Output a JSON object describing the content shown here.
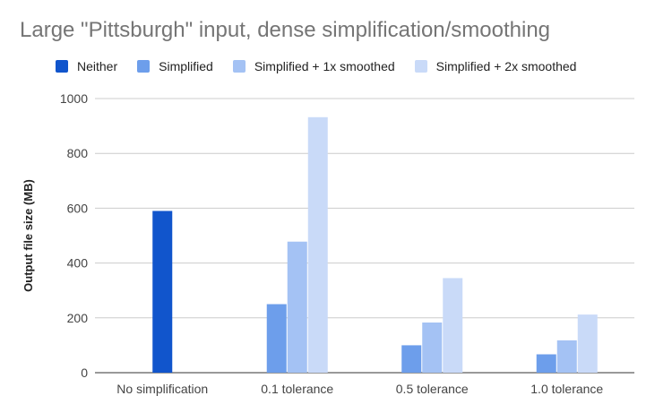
{
  "chart_data": {
    "type": "bar",
    "title": "Large \"Pittsburgh\" input, dense simplification/smoothing",
    "xlabel": "",
    "ylabel": "Output file size (MB)",
    "ylim": [
      0,
      1000
    ],
    "yticks": [
      "0",
      "200",
      "400",
      "600",
      "800",
      "1000"
    ],
    "grid": true,
    "legend_position": "top",
    "categories": [
      "No simplification",
      "0.1 tolerance",
      "0.5 tolerance",
      "1.0 tolerance"
    ],
    "series": [
      {
        "name": "Neither",
        "color": "#1155cc",
        "values": [
          590,
          null,
          null,
          null
        ]
      },
      {
        "name": "Simplified",
        "color": "#6d9eeb",
        "values": [
          null,
          250,
          100,
          67
        ]
      },
      {
        "name": "Simplified + 1x smoothed",
        "color": "#a4c2f4",
        "values": [
          null,
          478,
          183,
          118
        ]
      },
      {
        "name": "Simplified + 2x smoothed",
        "color": "#c9daf8",
        "values": [
          null,
          932,
          345,
          212
        ]
      }
    ]
  }
}
